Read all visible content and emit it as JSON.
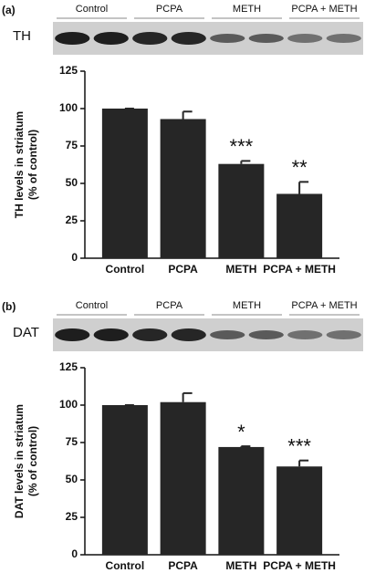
{
  "chart_data": [
    {
      "type": "bar",
      "panel_label": "(a)",
      "blot_label": "TH",
      "blot_groups": [
        "Control",
        "PCPA",
        "METH",
        "PCPA + METH"
      ],
      "ylabel": [
        "TH levels in striatum",
        "(% of control)"
      ],
      "categories": [
        "Control",
        "PCPA",
        "METH",
        "PCPA + METH"
      ],
      "values": [
        100,
        93,
        63,
        43
      ],
      "errors": [
        0,
        5,
        2,
        8
      ],
      "annotations": [
        null,
        null,
        "***",
        "**"
      ],
      "color": "#262626",
      "ylim": [
        0,
        125
      ],
      "yticks": [
        0,
        25,
        50,
        75,
        100,
        125
      ]
    },
    {
      "type": "bar",
      "panel_label": "(b)",
      "blot_label": "DAT",
      "blot_groups": [
        "Control",
        "PCPA",
        "METH",
        "PCPA + METH"
      ],
      "ylabel": [
        "DAT levels in striatum",
        "(% of control)"
      ],
      "categories": [
        "Control",
        "PCPA",
        "METH",
        "PCPA + METH"
      ],
      "values": [
        100,
        102,
        72,
        59
      ],
      "errors": [
        0,
        6,
        0.5,
        4
      ],
      "annotations": [
        null,
        null,
        "*",
        "***"
      ],
      "color": "#262626",
      "ylim": [
        0,
        125
      ],
      "yticks": [
        0,
        25,
        50,
        75,
        100,
        125
      ]
    }
  ]
}
